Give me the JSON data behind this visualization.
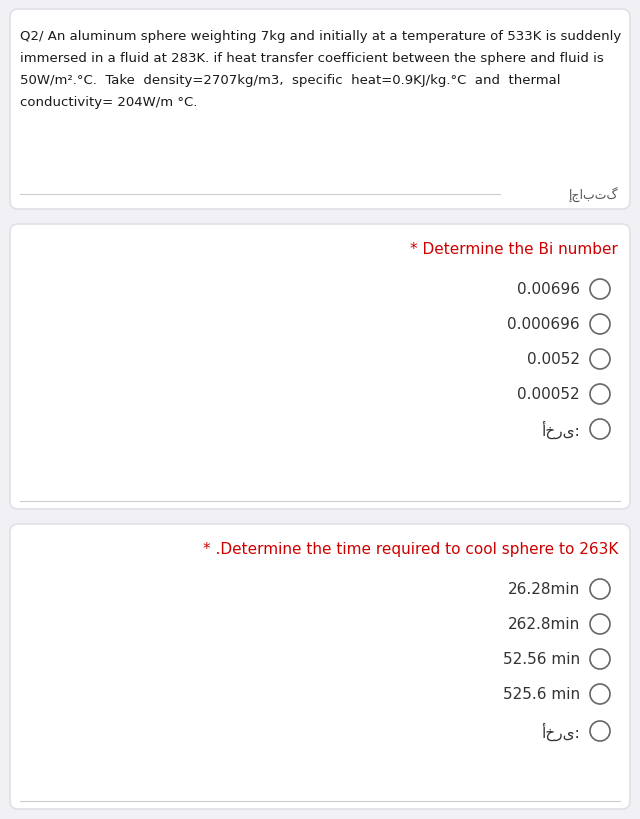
{
  "background_color": "#f0f0f5",
  "card_color": "#ffffff",
  "card_border_color": "#e0e0e8",
  "question_text_color": "#1a1a1a",
  "answer_label_color": "#cc0000",
  "answer_text_color": "#1a1a1a",
  "arabic_text_color": "#555555",
  "option_text_color": "#333333",
  "line_color": "#cccccc",
  "circle_color": "#666666",
  "q2_text": "Q2/ An aluminum sphere weighting 7kg and initially at a temperature of 533K is suddenly\nimmersed in a fluid at 283K. if heat transfer coefficient between the sphere and fluid is\n50W/m².°C.  Take  density=2707kg/m3,  specific  heat=0.9KJ/kg.°C  and  thermal\nconductivity= 204W/m °C.",
  "arabic_label": "إجابتگ",
  "q1_label": "* Determine the Bi number",
  "q1_options": [
    "0.00696",
    "0.000696",
    "0.0052",
    "0.00052"
  ],
  "q1_arabic": "أخرى:",
  "q2_label": "* .Determine the time required to cool sphere to 263K",
  "q2_options": [
    "26.28min",
    "262.8min",
    "52.56 min",
    "525.6 min"
  ],
  "q2_arabic": "أخرى:"
}
